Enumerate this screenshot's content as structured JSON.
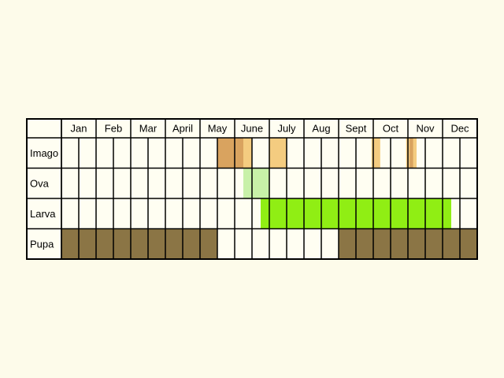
{
  "chart_data": {
    "type": "table",
    "months": [
      "Jan",
      "Feb",
      "Mar",
      "April",
      "May",
      "June",
      "July",
      "Aug",
      "Sept",
      "Oct",
      "Nov",
      "Dec"
    ],
    "subdivisions_per_month": 2,
    "stages": [
      {
        "name": "Imago",
        "periods": [
          {
            "start": 9.0,
            "end": 10.5,
            "color": "#d9a35f"
          },
          {
            "start": 10.5,
            "end": 11.0,
            "color": "#f4cc80"
          },
          {
            "start": 12.0,
            "end": 13.0,
            "color": "#f4cc80"
          },
          {
            "start": 17.9,
            "end": 18.4,
            "color": "#f4cc80"
          },
          {
            "start": 19.9,
            "end": 20.5,
            "color": "#f4cc80"
          },
          {
            "start": 20.1,
            "end": 20.3,
            "color": "#d9a35f"
          }
        ]
      },
      {
        "name": "Ova",
        "periods": [
          {
            "start": 10.5,
            "end": 12.0,
            "color": "#c8f1a8"
          }
        ]
      },
      {
        "name": "Larva",
        "periods": [
          {
            "start": 11.5,
            "end": 22.5,
            "color": "#90ee14"
          }
        ]
      },
      {
        "name": "Pupa",
        "periods": [
          {
            "start": 0.0,
            "end": 9.0,
            "color": "#8b7545"
          },
          {
            "start": 16.0,
            "end": 24.0,
            "color": "#8b7545"
          }
        ]
      }
    ],
    "colors": {
      "background": "#fdfbea",
      "cell": "#fffef2",
      "grid": "#000000"
    }
  }
}
